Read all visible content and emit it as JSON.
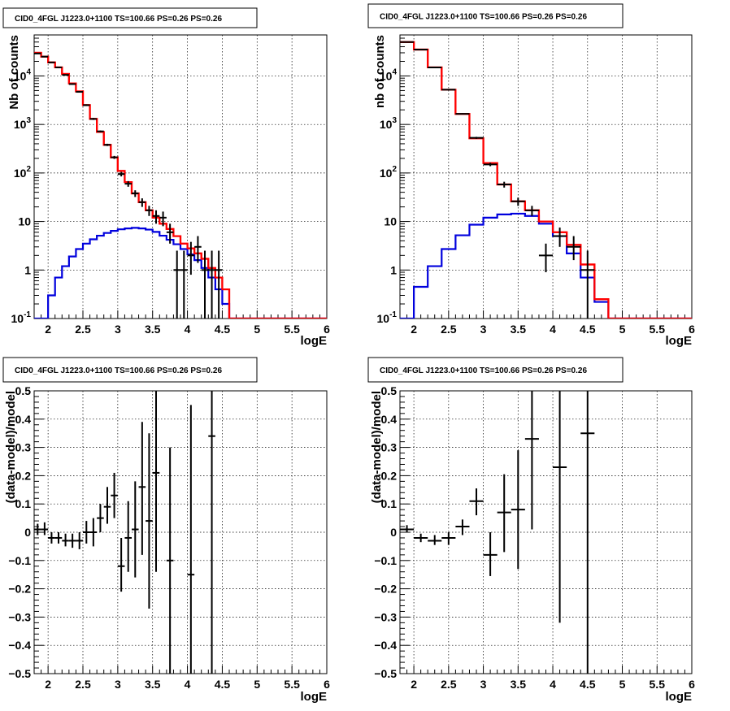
{
  "chart_data": [
    {
      "type": "histogram",
      "title": "CID0_4FGL J1223.0+1100 TS=100.66 PS=0.26 PS=0.26",
      "xlabel": "logE",
      "ylabel": "Nb of counts",
      "xlim": [
        1.8,
        6.0
      ],
      "ylim": [
        0.1,
        70000
      ],
      "yscale": "log",
      "grid": true,
      "x_ticks": [
        "2",
        "2.5",
        "3",
        "3.5",
        "4",
        "4.5",
        "5",
        "5.5",
        "6"
      ],
      "y_ticks": [
        "10^-1",
        "1",
        "10",
        "10^2",
        "10^3",
        "10^4"
      ],
      "bin_edges": [
        1.8,
        1.9,
        2.0,
        2.1,
        2.2,
        2.3,
        2.4,
        2.5,
        2.6,
        2.7,
        2.8,
        2.9,
        3.0,
        3.1,
        3.2,
        3.3,
        3.4,
        3.5,
        3.6,
        3.7,
        3.8,
        3.9,
        4.0,
        4.1,
        4.2,
        4.3,
        4.4,
        4.5,
        4.6,
        4.7,
        4.8,
        4.9,
        5.0,
        5.1,
        5.2,
        5.3,
        5.4,
        5.5,
        5.6,
        5.7,
        5.8,
        5.9,
        6.0
      ],
      "series": [
        {
          "color": "#ff0000",
          "style": "step",
          "values": [
            30000,
            25000,
            19000,
            15000,
            11000,
            7000,
            4800,
            2500,
            1300,
            700,
            380,
            210,
            110,
            65,
            38,
            25,
            17,
            12,
            9,
            7,
            5,
            3.5,
            2.8,
            2.2,
            1.7,
            1.1,
            0.7,
            0.4,
            0.1,
            0.1,
            0.1,
            0.1,
            0.1,
            0.1,
            0.1,
            0.1,
            0.1,
            0.1,
            0.1,
            0.1,
            0.1,
            0.1
          ]
        },
        {
          "color": "#000000",
          "style": "step",
          "values": [
            30000,
            25000,
            19000,
            15000,
            11000,
            7000,
            4800,
            2500,
            1300,
            700,
            380,
            210,
            110,
            65,
            38,
            25,
            17,
            12,
            9,
            7,
            5,
            3.5,
            2.8,
            2.2,
            1.7,
            1.1,
            0.7,
            0.4,
            0.1,
            0.1,
            0.1,
            0.1,
            0.1,
            0.1,
            0.1,
            0.1,
            0.1,
            0.1,
            0.1,
            0.1,
            0.1,
            0.1
          ]
        },
        {
          "color": "#0000dd",
          "style": "step",
          "values": [
            0.06,
            0.1,
            0.3,
            0.7,
            1.2,
            1.9,
            2.7,
            3.5,
            4.3,
            5.1,
            5.8,
            6.4,
            6.9,
            7.2,
            7.4,
            7.2,
            6.8,
            6.1,
            5.1,
            4.2,
            3.4,
            2.7,
            2.1,
            1.6,
            1.1,
            0.7,
            0.4,
            0.2,
            0.1,
            0.1,
            0.1,
            0.1,
            0.1,
            0.1,
            0.1,
            0.1,
            0.1,
            0.1,
            0.1,
            0.1,
            0.1,
            0.1
          ]
        }
      ],
      "points": [
        {
          "x": 1.85,
          "y": 29000,
          "lo": 28500,
          "hi": 29500,
          "xerr": 0.05
        },
        {
          "x": 1.95,
          "y": 25000,
          "lo": 24500,
          "hi": 25500,
          "xerr": 0.05
        },
        {
          "x": 2.05,
          "y": 19000,
          "lo": 18600,
          "hi": 19400,
          "xerr": 0.05
        },
        {
          "x": 2.15,
          "y": 15000,
          "lo": 14700,
          "hi": 15300,
          "xerr": 0.05
        },
        {
          "x": 2.25,
          "y": 10500,
          "lo": 10200,
          "hi": 10800,
          "xerr": 0.05
        },
        {
          "x": 2.35,
          "y": 6800,
          "lo": 6600,
          "hi": 7000,
          "xerr": 0.05
        },
        {
          "x": 2.45,
          "y": 4700,
          "lo": 4550,
          "hi": 4850,
          "xerr": 0.05
        },
        {
          "x": 2.55,
          "y": 2500,
          "lo": 2400,
          "hi": 2600,
          "xerr": 0.05
        },
        {
          "x": 2.65,
          "y": 1300,
          "lo": 1240,
          "hi": 1360,
          "xerr": 0.05
        },
        {
          "x": 2.75,
          "y": 720,
          "lo": 690,
          "hi": 750,
          "xerr": 0.05
        },
        {
          "x": 2.85,
          "y": 380,
          "lo": 360,
          "hi": 400,
          "xerr": 0.05
        },
        {
          "x": 2.95,
          "y": 210,
          "lo": 195,
          "hi": 225,
          "xerr": 0.05
        },
        {
          "x": 3.05,
          "y": 95,
          "lo": 85,
          "hi": 105,
          "xerr": 0.05
        },
        {
          "x": 3.15,
          "y": 60,
          "lo": 52,
          "hi": 68,
          "xerr": 0.05
        },
        {
          "x": 3.25,
          "y": 38,
          "lo": 32,
          "hi": 44,
          "xerr": 0.05
        },
        {
          "x": 3.35,
          "y": 25,
          "lo": 20,
          "hi": 30,
          "xerr": 0.05
        },
        {
          "x": 3.45,
          "y": 17,
          "lo": 13,
          "hi": 21,
          "xerr": 0.05
        },
        {
          "x": 3.55,
          "y": 13,
          "lo": 9,
          "hi": 17,
          "xerr": 0.05
        },
        {
          "x": 3.65,
          "y": 12,
          "lo": 8,
          "hi": 16,
          "xerr": 0.05
        },
        {
          "x": 3.75,
          "y": 6,
          "lo": 3.5,
          "hi": 9,
          "xerr": 0.05
        },
        {
          "x": 3.85,
          "y": 1,
          "lo": 0.1,
          "hi": 2.5,
          "xerr": 0.05
        },
        {
          "x": 3.95,
          "y": 1,
          "lo": 0.1,
          "hi": 2.5,
          "xerr": 0.05
        },
        {
          "x": 4.05,
          "y": 2,
          "lo": 0.8,
          "hi": 3.8,
          "xerr": 0.05
        },
        {
          "x": 4.15,
          "y": 3,
          "lo": 1.4,
          "hi": 5,
          "xerr": 0.05
        },
        {
          "x": 4.25,
          "y": 1,
          "lo": 0.1,
          "hi": 2.5,
          "xerr": 0.05
        },
        {
          "x": 4.35,
          "y": 1,
          "lo": 0.1,
          "hi": 2.5,
          "xerr": 0.05
        },
        {
          "x": 4.45,
          "y": 1,
          "lo": 0.1,
          "hi": 2.5,
          "xerr": 0.05
        }
      ]
    },
    {
      "type": "histogram",
      "title": "CID0_4FGL J1223.0+1100 TS=100.66 PS=0.26 PS=0.26",
      "xlabel": "logE",
      "ylabel": "nb of counts",
      "xlim": [
        1.8,
        6.0
      ],
      "ylim": [
        0.1,
        70000
      ],
      "yscale": "log",
      "grid": true,
      "x_ticks": [
        "2",
        "2.5",
        "3",
        "3.5",
        "4",
        "4.5",
        "5",
        "5.5",
        "6"
      ],
      "y_ticks": [
        "10^-1",
        "1",
        "10",
        "10^2",
        "10^3",
        "10^4"
      ],
      "bin_edges": [
        1.8,
        2.0,
        2.2,
        2.4,
        2.6,
        2.8,
        3.0,
        3.2,
        3.4,
        3.6,
        3.8,
        4.0,
        4.2,
        4.4,
        4.6,
        4.8,
        5.0,
        5.2,
        5.4,
        5.6,
        5.8,
        6.0
      ],
      "series": [
        {
          "color": "#ff0000",
          "style": "step",
          "values": [
            50000,
            35000,
            15000,
            5200,
            1650,
            520,
            160,
            58,
            26,
            17,
            10,
            6,
            3.3,
            1.3,
            0.25,
            0.1,
            0.1,
            0.1,
            0.1,
            0.1,
            0.1
          ]
        },
        {
          "color": "#000000",
          "style": "step",
          "values": [
            50000,
            35000,
            15000,
            5200,
            1650,
            520,
            160,
            58,
            26,
            17,
            10,
            6,
            3.3,
            1.3,
            0.25,
            0.1,
            0.1,
            0.1,
            0.1,
            0.1,
            0.1
          ]
        },
        {
          "color": "#0000dd",
          "style": "step",
          "values": [
            0.1,
            0.45,
            1.2,
            2.7,
            5.2,
            8.6,
            12,
            14,
            14.5,
            13,
            9,
            5,
            2.2,
            0.7,
            0.22,
            0.1,
            0.1,
            0.1,
            0.1,
            0.1,
            0.1
          ]
        }
      ],
      "points": [
        {
          "x": 1.9,
          "y": 50000,
          "lo": 49500,
          "hi": 50500,
          "xerr": 0.1
        },
        {
          "x": 2.1,
          "y": 35000,
          "lo": 34600,
          "hi": 35400,
          "xerr": 0.1
        },
        {
          "x": 2.3,
          "y": 15000,
          "lo": 14700,
          "hi": 15300,
          "xerr": 0.1
        },
        {
          "x": 2.5,
          "y": 5200,
          "lo": 5050,
          "hi": 5350,
          "xerr": 0.1
        },
        {
          "x": 2.7,
          "y": 1650,
          "lo": 1600,
          "hi": 1700,
          "xerr": 0.1
        },
        {
          "x": 2.9,
          "y": 530,
          "lo": 505,
          "hi": 555,
          "xerr": 0.1
        },
        {
          "x": 3.1,
          "y": 150,
          "lo": 138,
          "hi": 162,
          "xerr": 0.1
        },
        {
          "x": 3.3,
          "y": 58,
          "lo": 50,
          "hi": 66,
          "xerr": 0.1
        },
        {
          "x": 3.5,
          "y": 26,
          "lo": 21,
          "hi": 31,
          "xerr": 0.1
        },
        {
          "x": 3.7,
          "y": 17,
          "lo": 13,
          "hi": 21,
          "xerr": 0.1
        },
        {
          "x": 3.9,
          "y": 2,
          "lo": 0.9,
          "hi": 3.5,
          "xerr": 0.1
        },
        {
          "x": 4.1,
          "y": 5,
          "lo": 3,
          "hi": 7.5,
          "xerr": 0.1
        },
        {
          "x": 4.3,
          "y": 3,
          "lo": 1.6,
          "hi": 5,
          "xerr": 0.1
        },
        {
          "x": 4.5,
          "y": 1,
          "lo": 0.1,
          "hi": 2.5,
          "xerr": 0.1
        }
      ]
    },
    {
      "type": "scatter",
      "title": "CID0_4FGL J1223.0+1100 TS=100.66 PS=0.26 PS=0.26",
      "xlabel": "logE",
      "ylabel": "(data-model)/model",
      "xlim": [
        1.8,
        6.0
      ],
      "ylim": [
        -0.5,
        0.5
      ],
      "grid": true,
      "x_ticks": [
        "2",
        "2.5",
        "3",
        "3.5",
        "4",
        "4.5",
        "5",
        "5.5",
        "6"
      ],
      "y_ticks": [
        "−0.5",
        "−0.4",
        "−0.3",
        "−0.2",
        "−0.1",
        "0",
        "0.1",
        "0.2",
        "0.3",
        "0.4",
        "0.5"
      ],
      "points": [
        {
          "x": 1.85,
          "y": 0.01,
          "lo": -0.01,
          "hi": 0.03,
          "xerr": 0.05
        },
        {
          "x": 1.95,
          "y": 0.01,
          "lo": -0.01,
          "hi": 0.035,
          "xerr": 0.05
        },
        {
          "x": 2.05,
          "y": -0.02,
          "lo": -0.04,
          "hi": 0.0,
          "xerr": 0.05
        },
        {
          "x": 2.15,
          "y": -0.02,
          "lo": -0.04,
          "hi": 0.0,
          "xerr": 0.05
        },
        {
          "x": 2.25,
          "y": -0.03,
          "lo": -0.05,
          "hi": -0.005,
          "xerr": 0.05
        },
        {
          "x": 2.35,
          "y": -0.03,
          "lo": -0.055,
          "hi": -0.005,
          "xerr": 0.05
        },
        {
          "x": 2.45,
          "y": -0.03,
          "lo": -0.06,
          "hi": 0.0,
          "xerr": 0.05
        },
        {
          "x": 2.55,
          "y": 0.0,
          "lo": -0.04,
          "hi": 0.04,
          "xerr": 0.05
        },
        {
          "x": 2.65,
          "y": 0.0,
          "lo": -0.05,
          "hi": 0.05,
          "xerr": 0.05
        },
        {
          "x": 2.75,
          "y": 0.05,
          "lo": 0.0,
          "hi": 0.1,
          "xerr": 0.05
        },
        {
          "x": 2.85,
          "y": 0.09,
          "lo": 0.03,
          "hi": 0.16,
          "xerr": 0.05
        },
        {
          "x": 2.95,
          "y": 0.13,
          "lo": 0.05,
          "hi": 0.21,
          "xerr": 0.05
        },
        {
          "x": 3.05,
          "y": -0.12,
          "lo": -0.21,
          "hi": -0.02,
          "xerr": 0.05
        },
        {
          "x": 3.15,
          "y": -0.02,
          "lo": -0.14,
          "hi": 0.11,
          "xerr": 0.05
        },
        {
          "x": 3.25,
          "y": 0.01,
          "lo": -0.16,
          "hi": 0.18,
          "xerr": 0.05
        },
        {
          "x": 3.35,
          "y": 0.16,
          "lo": -0.08,
          "hi": 0.39,
          "xerr": 0.05
        },
        {
          "x": 3.45,
          "y": 0.04,
          "lo": -0.27,
          "hi": 0.35,
          "xerr": 0.05
        },
        {
          "x": 3.55,
          "y": 0.21,
          "lo": -0.14,
          "hi": 0.5,
          "xerr": 0.05
        },
        {
          "x": 3.75,
          "y": -0.1,
          "lo": -0.5,
          "hi": 0.3,
          "xerr": 0.05
        },
        {
          "x": 4.05,
          "y": -0.15,
          "lo": -0.5,
          "hi": 0.45,
          "xerr": 0.05
        },
        {
          "x": 4.35,
          "y": 0.34,
          "lo": -0.5,
          "hi": 0.5,
          "xerr": 0.05
        }
      ]
    },
    {
      "type": "scatter",
      "title": "CID0_4FGL J1223.0+1100 TS=100.66 PS=0.26 PS=0.26",
      "xlabel": "logE",
      "ylabel": "(data-model)/model",
      "xlim": [
        1.8,
        6.0
      ],
      "ylim": [
        -0.5,
        0.5
      ],
      "grid": true,
      "x_ticks": [
        "2",
        "2.5",
        "3",
        "3.5",
        "4",
        "4.5",
        "5",
        "5.5",
        "6"
      ],
      "y_ticks": [
        "−0.5",
        "−0.4",
        "−0.3",
        "−0.2",
        "−0.1",
        "0",
        "0.1",
        "0.2",
        "0.3",
        "0.4",
        "0.5"
      ],
      "points": [
        {
          "x": 1.9,
          "y": 0.01,
          "lo": 0.0,
          "hi": 0.025,
          "xerr": 0.1
        },
        {
          "x": 2.1,
          "y": -0.02,
          "lo": -0.035,
          "hi": -0.005,
          "xerr": 0.1
        },
        {
          "x": 2.3,
          "y": -0.03,
          "lo": -0.045,
          "hi": -0.01,
          "xerr": 0.1
        },
        {
          "x": 2.5,
          "y": -0.02,
          "lo": -0.045,
          "hi": 0.0,
          "xerr": 0.1
        },
        {
          "x": 2.7,
          "y": 0.02,
          "lo": -0.01,
          "hi": 0.045,
          "xerr": 0.1
        },
        {
          "x": 2.9,
          "y": 0.11,
          "lo": 0.06,
          "hi": 0.155,
          "xerr": 0.1
        },
        {
          "x": 3.1,
          "y": -0.08,
          "lo": -0.155,
          "hi": 0.0,
          "xerr": 0.1
        },
        {
          "x": 3.3,
          "y": 0.07,
          "lo": -0.07,
          "hi": 0.205,
          "xerr": 0.1
        },
        {
          "x": 3.5,
          "y": 0.08,
          "lo": -0.13,
          "hi": 0.29,
          "xerr": 0.1
        },
        {
          "x": 3.7,
          "y": 0.33,
          "lo": 0.01,
          "hi": 0.5,
          "xerr": 0.1
        },
        {
          "x": 4.1,
          "y": 0.23,
          "lo": -0.32,
          "hi": 0.5,
          "xerr": 0.1
        },
        {
          "x": 4.5,
          "y": 0.35,
          "lo": -0.5,
          "hi": 0.5,
          "xerr": 0.1
        }
      ]
    }
  ]
}
